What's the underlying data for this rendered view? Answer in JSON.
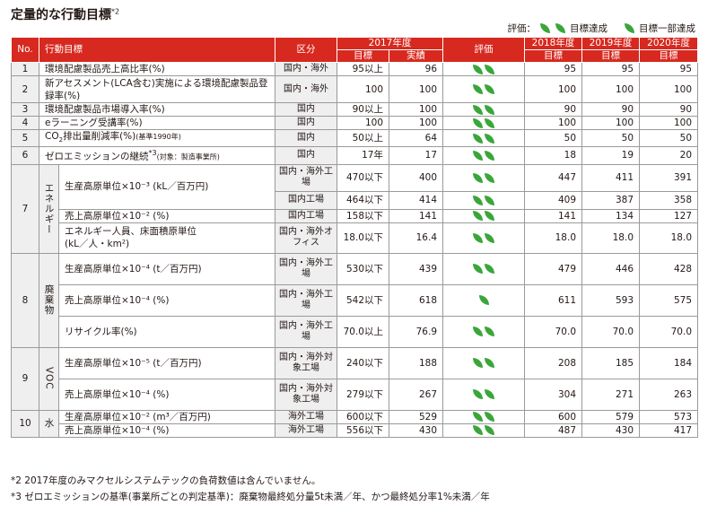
{
  "title": "定量的な行動目標",
  "title_note": "*2",
  "legend": {
    "prefix": "評価：",
    "achieved": "目標達成",
    "partial": "目標一部達成",
    "leaf_color": "#3aa63a"
  },
  "header": {
    "no": "No.",
    "goal": "行動目標",
    "area": "区分",
    "fy2017": "2017年度",
    "target": "目標",
    "result": "実績",
    "eval": "評価",
    "fy2018": "2018年度",
    "fy2019": "2019年度",
    "fy2020": "2020年度",
    "target2018": "目標",
    "target2019": "目標",
    "target2020": "目標",
    "header_color": "#d7291f"
  },
  "rows": {
    "r1": {
      "no": "1",
      "goal": "環境配慮製品売上高比率(%)",
      "area": "国内・海外",
      "target": "95以上",
      "result": "96",
      "t2018": "95",
      "t2019": "95",
      "t2020": "95"
    },
    "r2": {
      "no": "2",
      "goal": "新アセスメント(LCA含む)実施による環境配慮製品登録率(%)",
      "area": "国内・海外",
      "target": "100",
      "result": "100",
      "t2018": "100",
      "t2019": "100",
      "t2020": "100"
    },
    "r3": {
      "no": "3",
      "goal": "環境配慮製品市場導入率(%)",
      "area": "国内",
      "target": "90以上",
      "result": "100",
      "t2018": "90",
      "t2019": "90",
      "t2020": "90"
    },
    "r4": {
      "no": "4",
      "goal": "eラーニング受講率(%)",
      "area": "国内",
      "target": "100",
      "result": "100",
      "t2018": "100",
      "t2019": "100",
      "t2020": "100"
    },
    "r5": {
      "no": "5",
      "goal_a": "CO",
      "goal_sub": "2",
      "goal_b": "排出量削減率(%)",
      "goal_small": "(基準1990年)",
      "area": "国内",
      "target": "50以上",
      "result": "64",
      "t2018": "50",
      "t2019": "50",
      "t2020": "50"
    },
    "r6": {
      "no": "6",
      "goal": "ゼロエミッションの継続",
      "goal_note": "*3",
      "goal_small": "(対象：製造事業所)",
      "area": "国内",
      "target": "17年",
      "result": "17",
      "t2018": "18",
      "t2019": "19",
      "t2020": "20"
    },
    "r7": {
      "no": "7",
      "group": "エネルギー",
      "a": {
        "goal": "生産高原単位×10⁻³ (kL／百万円)",
        "area1": "国内・海外工場",
        "target1": "470以下",
        "result1": "400",
        "t2018a": "447",
        "t2019a": "411",
        "t2020a": "391",
        "area2": "国内工場",
        "target2": "464以下",
        "result2": "414",
        "t2018b": "409",
        "t2019b": "387",
        "t2020b": "358"
      },
      "b": {
        "goal": "売上高原単位×10⁻² (%)",
        "area": "国内工場",
        "target": "158以下",
        "result": "141",
        "t2018": "141",
        "t2019": "134",
        "t2020": "127"
      },
      "c": {
        "goal_1": "エネルギー人員、床面積原単位",
        "goal_2": "(kL／人・km²)",
        "area": "国内・海外オフィス",
        "target": "18.0以下",
        "result": "16.4",
        "t2018": "18.0",
        "t2019": "18.0",
        "t2020": "18.0"
      }
    },
    "r8": {
      "no": "8",
      "group": "廃棄物",
      "a": {
        "goal": "生産高原単位×10⁻⁴ (t／百万円)",
        "area": "国内・海外工場",
        "target": "530以下",
        "result": "439",
        "t2018": "479",
        "t2019": "446",
        "t2020": "428"
      },
      "b": {
        "goal": "売上高原単位×10⁻⁴ (%)",
        "area": "国内・海外工場",
        "target": "542以下",
        "result": "618",
        "t2018": "611",
        "t2019": "593",
        "t2020": "575"
      },
      "c": {
        "goal": "リサイクル率(%)",
        "area": "国内・海外工場",
        "target": "70.0以上",
        "result": "76.9",
        "t2018": "70.0",
        "t2019": "70.0",
        "t2020": "70.0"
      }
    },
    "r9": {
      "no": "9",
      "group": "VOC",
      "a": {
        "goal": "生産高原単位×10⁻⁵ (t／百万円)",
        "area": "国内・海外対象工場",
        "target": "240以下",
        "result": "188",
        "t2018": "208",
        "t2019": "185",
        "t2020": "184"
      },
      "b": {
        "goal": "売上高原単位×10⁻⁴ (%)",
        "area": "国内・海外対象工場",
        "target": "279以下",
        "result": "267",
        "t2018": "304",
        "t2019": "271",
        "t2020": "263"
      }
    },
    "r10": {
      "no": "10",
      "group": "水",
      "a": {
        "goal": "生産高原単位×10⁻² (m³／百万円)",
        "area": "海外工場",
        "target": "600以下",
        "result": "529",
        "t2018": "600",
        "t2019": "579",
        "t2020": "573"
      },
      "b": {
        "goal": "売上高原単位×10⁻⁴ (%)",
        "area": "海外工場",
        "target": "556以下",
        "result": "430",
        "t2018": "487",
        "t2019": "430",
        "t2020": "417"
      }
    }
  },
  "notes": {
    "n2": "*2 2017年度のみマクセルシステムテックの負荷数値は含んでいません。",
    "n3": "*3 ゼロエミッションの基準(事業所ごとの判定基準)：廃棄物最終処分量5t未満／年、かつ最終処分率1%未満／年"
  }
}
